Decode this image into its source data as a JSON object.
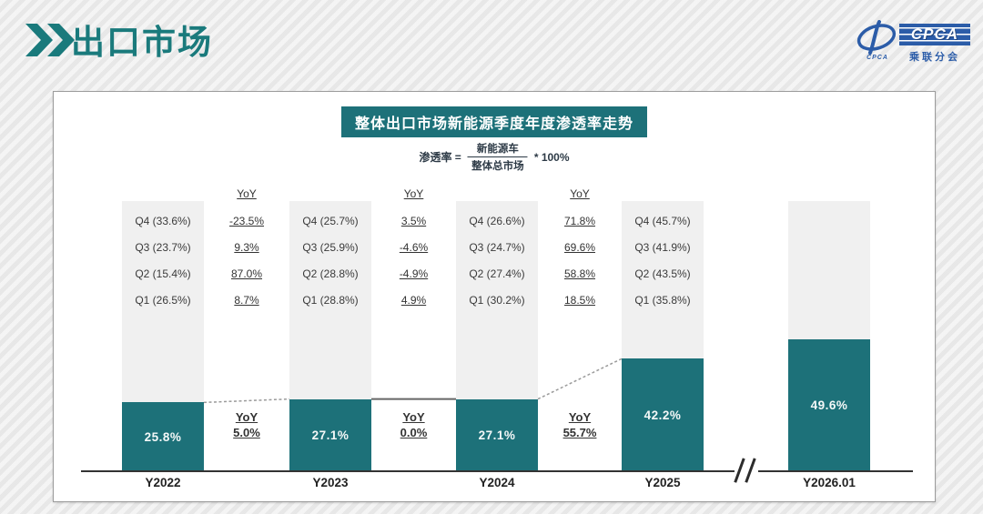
{
  "header": {
    "title": "出口市场"
  },
  "logo": {
    "brand": "CPCA",
    "brand_caption": "乘联分会",
    "swoosh_caption": "CPCA",
    "blue": "#2b5ca8"
  },
  "chart": {
    "title": "整体出口市场新能源季度年度渗透率走势",
    "formula": {
      "lhs": "渗透率 =",
      "numerator": "新能源车",
      "denominator": "整体总市场",
      "suffix": "* 100%"
    }
  },
  "chart_data": {
    "type": "bar",
    "title": "整体出口市场新能源季度年度渗透率走势",
    "categories": [
      "Y2022",
      "Y2023",
      "Y2024",
      "Y2025",
      "Y2026.01"
    ],
    "values": [
      25.8,
      27.1,
      27.1,
      42.2,
      49.6
    ],
    "bar_labels": [
      "25.8%",
      "27.1%",
      "27.1%",
      "42.2%",
      "49.6%"
    ],
    "ylim": [
      0,
      100
    ],
    "bar_color": "#1d7179",
    "column_bg_color": "#f0f0f0",
    "quarterly_annotations": [
      {
        "category": "Y2022",
        "rows": [
          "Q4 (33.6%)",
          "Q3 (23.7%)",
          "Q2 (15.4%)",
          "Q1 (26.5%)"
        ]
      },
      {
        "category": "Y2023",
        "rows": [
          "Q4 (25.7%)",
          "Q3 (25.9%)",
          "Q2 (28.8%)",
          "Q1 (28.8%)"
        ]
      },
      {
        "category": "Y2024",
        "rows": [
          "Q4 (26.6%)",
          "Q3 (24.7%)",
          "Q2 (27.4%)",
          "Q1 (30.2%)"
        ]
      },
      {
        "category": "Y2025",
        "rows": [
          "Q4 (45.7%)",
          "Q3 (41.9%)",
          "Q2 (43.5%)",
          "Q1 (35.8%)"
        ]
      },
      {
        "category": "Y2026.01",
        "rows": []
      }
    ],
    "yoy_quarterly_columns": [
      {
        "after": "Y2022",
        "header": "YoY",
        "values": [
          "-23.5%",
          "9.3%",
          "87.0%",
          "8.7%"
        ]
      },
      {
        "after": "Y2023",
        "header": "YoY",
        "values": [
          "3.5%",
          "-4.6%",
          "-4.9%",
          "4.9%"
        ]
      },
      {
        "after": "Y2024",
        "header": "YoY",
        "values": [
          "71.8%",
          "69.6%",
          "58.8%",
          "18.5%"
        ]
      }
    ],
    "yoy_annual": [
      {
        "between": "Y2022-Y2023",
        "header": "YoY",
        "value": "5.0%"
      },
      {
        "between": "Y2023-Y2024",
        "header": "YoY",
        "value": "0.0%"
      },
      {
        "between": "Y2024-Y2025",
        "header": "YoY",
        "value": "55.7%"
      }
    ],
    "axis_break_between": [
      "Y2025",
      "Y2026.01"
    ]
  }
}
